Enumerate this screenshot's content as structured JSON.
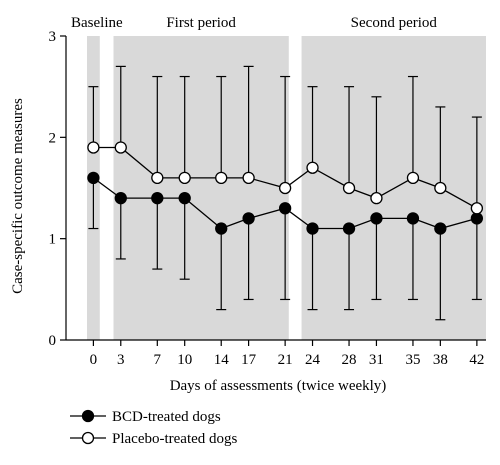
{
  "chart_data": {
    "type": "line",
    "xlabel": "Days of assessments (twice weekly)",
    "ylabel": "Case-specific outcome measures",
    "xlim": [
      -3,
      43
    ],
    "ylim": [
      0,
      3
    ],
    "x_ticks": [
      0,
      3,
      7,
      10,
      14,
      17,
      21,
      24,
      28,
      31,
      35,
      38,
      42
    ],
    "y_ticks": [
      0,
      1,
      2,
      3
    ],
    "grid": false,
    "legend_position": "bottom-left",
    "periods": [
      {
        "label": "Baseline",
        "x_start": -0.7,
        "x_end": 0.7
      },
      {
        "label": "First period",
        "x_start": 2.2,
        "x_end": 21.4
      },
      {
        "label": "Second period",
        "x_start": 22.8,
        "x_end": 43
      }
    ],
    "series": [
      {
        "name": "BCD-treated dogs",
        "marker": "filled-circle",
        "color": "#000000",
        "x": [
          0,
          3,
          7,
          10,
          14,
          17,
          21,
          24,
          28,
          31,
          35,
          38,
          42
        ],
        "values": [
          1.6,
          1.4,
          1.4,
          1.4,
          1.1,
          1.2,
          1.3,
          1.1,
          1.1,
          1.2,
          1.2,
          1.1,
          1.2
        ],
        "error_low": [
          1.1,
          0.8,
          0.7,
          0.6,
          0.3,
          0.4,
          0.4,
          0.3,
          0.3,
          0.4,
          0.4,
          0.2,
          0.4
        ]
      },
      {
        "name": "Placebo-treated dogs",
        "marker": "open-circle",
        "color": "#000000",
        "x": [
          0,
          3,
          7,
          10,
          14,
          17,
          21,
          24,
          28,
          31,
          35,
          38,
          42
        ],
        "values": [
          1.9,
          1.9,
          1.6,
          1.6,
          1.6,
          1.6,
          1.5,
          1.7,
          1.5,
          1.4,
          1.6,
          1.5,
          1.3
        ],
        "error_high": [
          2.5,
          2.7,
          2.6,
          2.6,
          2.6,
          2.7,
          2.6,
          2.5,
          2.5,
          2.4,
          2.6,
          2.3,
          2.2
        ]
      }
    ],
    "shading_color": "#d9d9d9"
  }
}
